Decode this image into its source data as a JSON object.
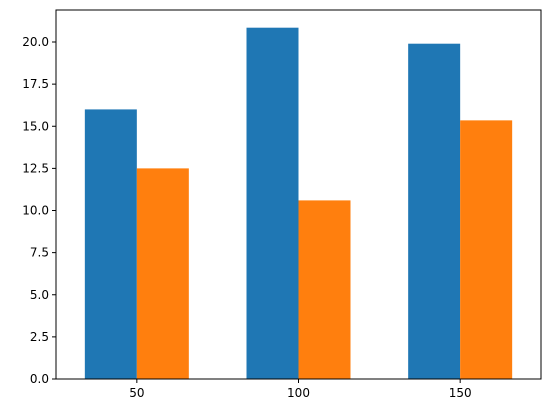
{
  "chart_data": {
    "type": "bar",
    "categories": [
      "50",
      "100",
      "150"
    ],
    "series": [
      {
        "color": "#1f77b4",
        "values": [
          16.0,
          20.85,
          19.9
        ]
      },
      {
        "color": "#ff7f0e",
        "values": [
          12.5,
          10.6,
          15.35
        ]
      }
    ],
    "title": "",
    "xlabel": "",
    "ylabel": "",
    "ylim": [
      0,
      21.9
    ],
    "yticks": [
      "0.0",
      "2.5",
      "5.0",
      "7.5",
      "10.0",
      "12.5",
      "15.0",
      "17.5",
      "20.0"
    ],
    "grid": false,
    "legend": "none"
  }
}
